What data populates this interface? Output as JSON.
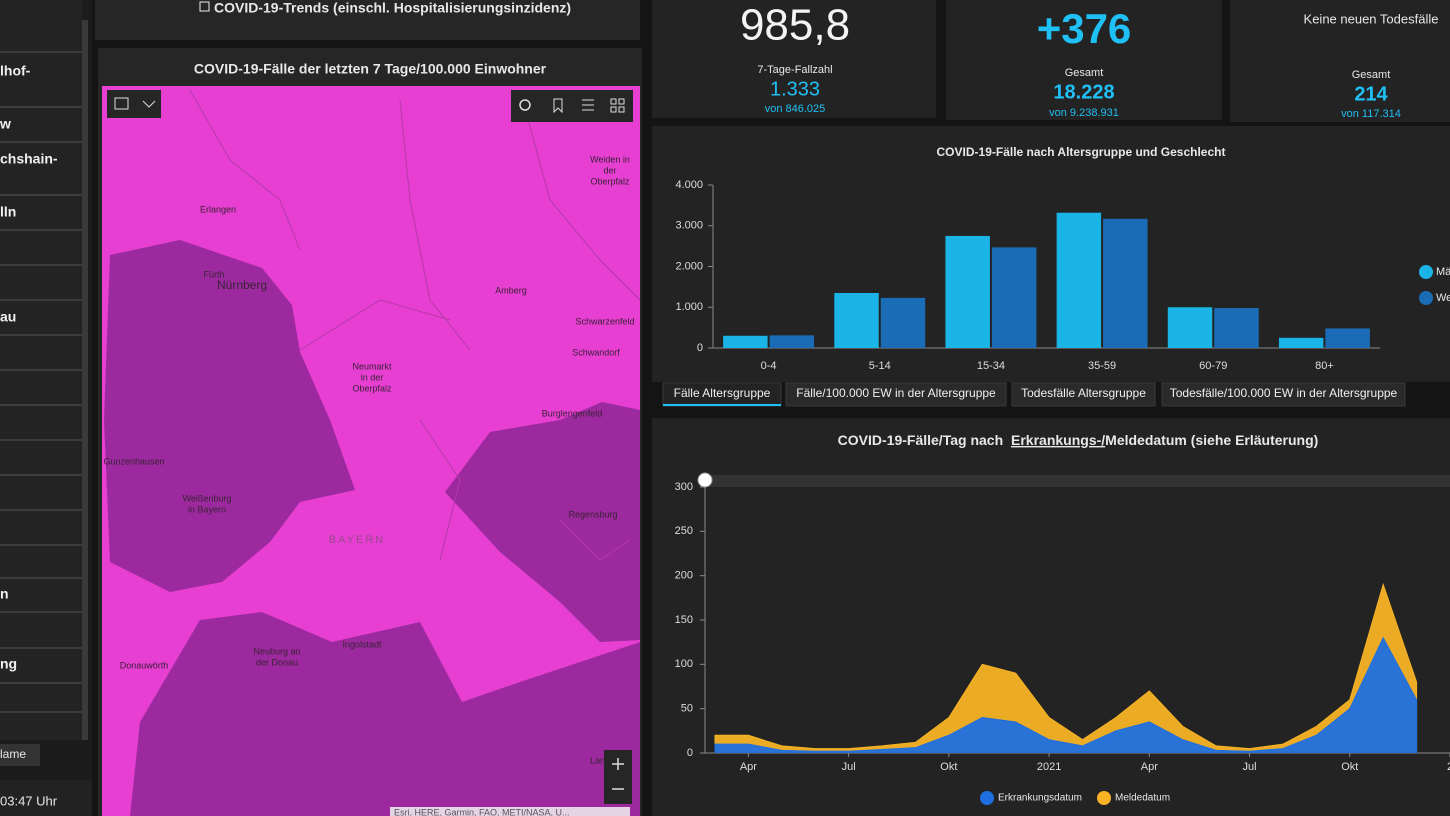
{
  "sidebar": {
    "items": [
      "lhof-",
      "w",
      "chshain-",
      "lln",
      "au",
      "n",
      "ng"
    ],
    "name_label": "lame",
    "time": "03:47 Uhr"
  },
  "trends_link": "COVID-19-Trends (einschl. Hospitalisierungsinzidenz)",
  "map": {
    "title": "COVID-19-Fälle der letzten 7 Tage/100.000 Einwohner",
    "places": [
      "Weiden in",
      "der",
      "Oberpfalz",
      "Erlangen",
      "Fürth",
      "Nürnberg",
      "Amberg",
      "Schwarzenfeld",
      "Schwandorf",
      "Neumarkt",
      "in der",
      "Oberpfalz",
      "Burglengenfeld",
      "Gunzenhausen",
      "Weißenburg",
      "in Bayern",
      "Regensburg",
      "BAYERN",
      "Donauwörth",
      "Ingolstadt",
      "Neuburg an",
      "der Donau",
      "Lan"
    ],
    "attribution": "Esri, HERE, Garmin, FAO, METI/NASA, U..."
  },
  "kpis": [
    {
      "value": "985,8",
      "label": "7-Tage-Fallzahl",
      "total": "1.333",
      "of": "von 846.025"
    },
    {
      "value": "+376",
      "label": "Gesamt",
      "total": "18.228",
      "of": "von 9.238.931"
    },
    {
      "value": "Keine neuen Todesfälle",
      "label": "Gesamt",
      "total": "214",
      "of": "von 117.314"
    }
  ],
  "chart_data": [
    {
      "type": "bar",
      "title": "COVID-19-Fälle nach Altersgruppe und Geschlecht",
      "categories": [
        "0-4",
        "5-14",
        "15-34",
        "35-59",
        "60-79",
        "80+"
      ],
      "series": [
        {
          "name": "Männlich",
          "color": "#1ab4e6",
          "values": [
            300,
            1350,
            2750,
            3320,
            1000,
            250
          ]
        },
        {
          "name": "Weiblich",
          "color": "#1a6cb6",
          "values": [
            310,
            1230,
            2470,
            3170,
            980,
            480
          ]
        }
      ],
      "ylim": [
        0,
        4000
      ],
      "yticks": [
        0,
        {
          "value": 1000,
          "label": "1.000"
        },
        {
          "value": 2000,
          "label": "2.000"
        },
        {
          "value": 3000,
          "label": "3.000"
        },
        {
          "value": 4000,
          "label": "4.000"
        }
      ],
      "legend": "right",
      "tabs": [
        "Fälle Altersgruppe",
        "Fälle/100.000 EW in der Altersgruppe",
        "Todesfälle Altersgruppe",
        "Todesfälle/100.000 EW in der Altersgruppe"
      ]
    },
    {
      "type": "area",
      "title": [
        "COVID-19-Fälle/Tag nach",
        "Erkrankungs-/",
        "Meldedatum (siehe Erläuterung)"
      ],
      "x": [
        "2020-03",
        "2020-04",
        "2020-05",
        "2020-06",
        "2020-07",
        "2020-08",
        "2020-09",
        "2020-10",
        "2020-11",
        "2020-12",
        "2021-01",
        "2021-02",
        "2021-03",
        "2021-04",
        "2021-05",
        "2021-06",
        "2021-07",
        "2021-08",
        "2021-09",
        "2021-10",
        "2021-11",
        "2021-12"
      ],
      "series": [
        {
          "name": "Erkrankungsdatum",
          "color": "#1f6fe0",
          "values": [
            10,
            10,
            3,
            2,
            2,
            4,
            6,
            20,
            40,
            35,
            15,
            8,
            25,
            35,
            15,
            3,
            2,
            5,
            20,
            50,
            130,
            60
          ]
        },
        {
          "name": "Meldedatum",
          "color": "#f7b325",
          "values": [
            20,
            20,
            8,
            5,
            5,
            8,
            12,
            40,
            100,
            90,
            40,
            15,
            40,
            70,
            30,
            8,
            5,
            10,
            30,
            60,
            190,
            80
          ]
        }
      ],
      "xlim": [
        "2020-03",
        "2022-01"
      ],
      "xticks": [
        {
          "value": "2020-04",
          "label": "Apr"
        },
        {
          "value": "2020-07",
          "label": "Jul"
        },
        {
          "value": "2020-10",
          "label": "Okt"
        },
        {
          "value": "2021-01",
          "label": "2021"
        },
        {
          "value": "2021-04",
          "label": "Apr"
        },
        {
          "value": "2021-07",
          "label": "Jul"
        },
        {
          "value": "2021-10",
          "label": "Okt"
        },
        {
          "value": "2022-01",
          "label": "2"
        }
      ],
      "ylim": [
        0,
        300
      ],
      "yticks": [
        0,
        50,
        100,
        150,
        200,
        250,
        300
      ],
      "legend": "bottom"
    }
  ]
}
